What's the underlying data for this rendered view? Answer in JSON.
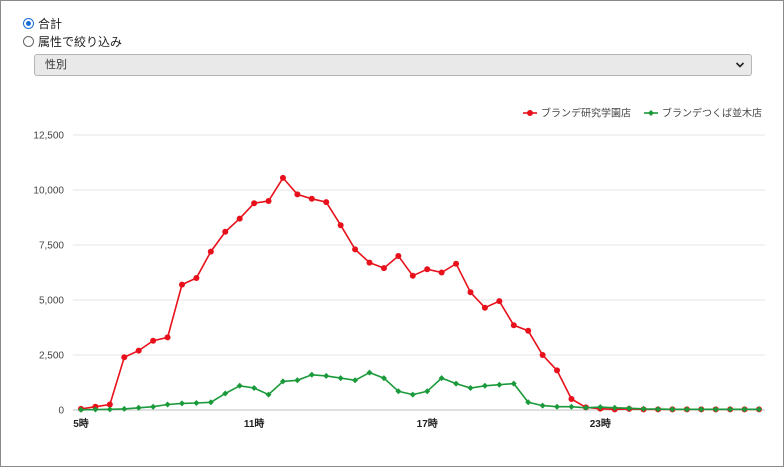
{
  "filter": {
    "option_total": "合計",
    "option_attribute": "属性で絞り込み",
    "selected_total": true,
    "select_value": "性別"
  },
  "chart_data": {
    "type": "line",
    "title": "",
    "xlabel": "",
    "ylabel": "",
    "ylim": [
      0,
      12500
    ],
    "yticks": [
      "0",
      "2,500",
      "5,000",
      "7,500",
      "10,000",
      "12,500"
    ],
    "x_tick_labels": [
      {
        "index": 0,
        "label": "5時"
      },
      {
        "index": 12,
        "label": "11時"
      },
      {
        "index": 24,
        "label": "17時"
      },
      {
        "index": 36,
        "label": "23時"
      }
    ],
    "point_count": 48,
    "legend_position": "top-right",
    "grid": true,
    "series": [
      {
        "name": "ブランデ研究学園店",
        "color": "#e8101a",
        "marker": "circle",
        "values": [
          50,
          150,
          250,
          2400,
          2700,
          3150,
          3300,
          5700,
          6000,
          7200,
          8100,
          8700,
          9400,
          9500,
          10550,
          9800,
          9600,
          9450,
          8400,
          7300,
          6700,
          6450,
          7000,
          6100,
          6400,
          6250,
          6650,
          5350,
          4650,
          4950,
          3850,
          3600,
          2500,
          1800,
          500,
          120,
          60,
          30,
          50,
          30,
          30,
          30,
          30,
          30,
          30,
          30,
          30,
          30
        ]
      },
      {
        "name": "ブランデつくば並木店",
        "color": "#1a9a3a",
        "marker": "diamond",
        "values": [
          10,
          20,
          30,
          50,
          100,
          150,
          250,
          300,
          320,
          350,
          750,
          1100,
          1000,
          700,
          1300,
          1350,
          1600,
          1550,
          1450,
          1350,
          1700,
          1450,
          850,
          700,
          850,
          1450,
          1200,
          1000,
          1100,
          1150,
          1200,
          350,
          200,
          150,
          150,
          100,
          130,
          100,
          80,
          50,
          40,
          30,
          30,
          30,
          30,
          30,
          30,
          30
        ]
      }
    ]
  }
}
